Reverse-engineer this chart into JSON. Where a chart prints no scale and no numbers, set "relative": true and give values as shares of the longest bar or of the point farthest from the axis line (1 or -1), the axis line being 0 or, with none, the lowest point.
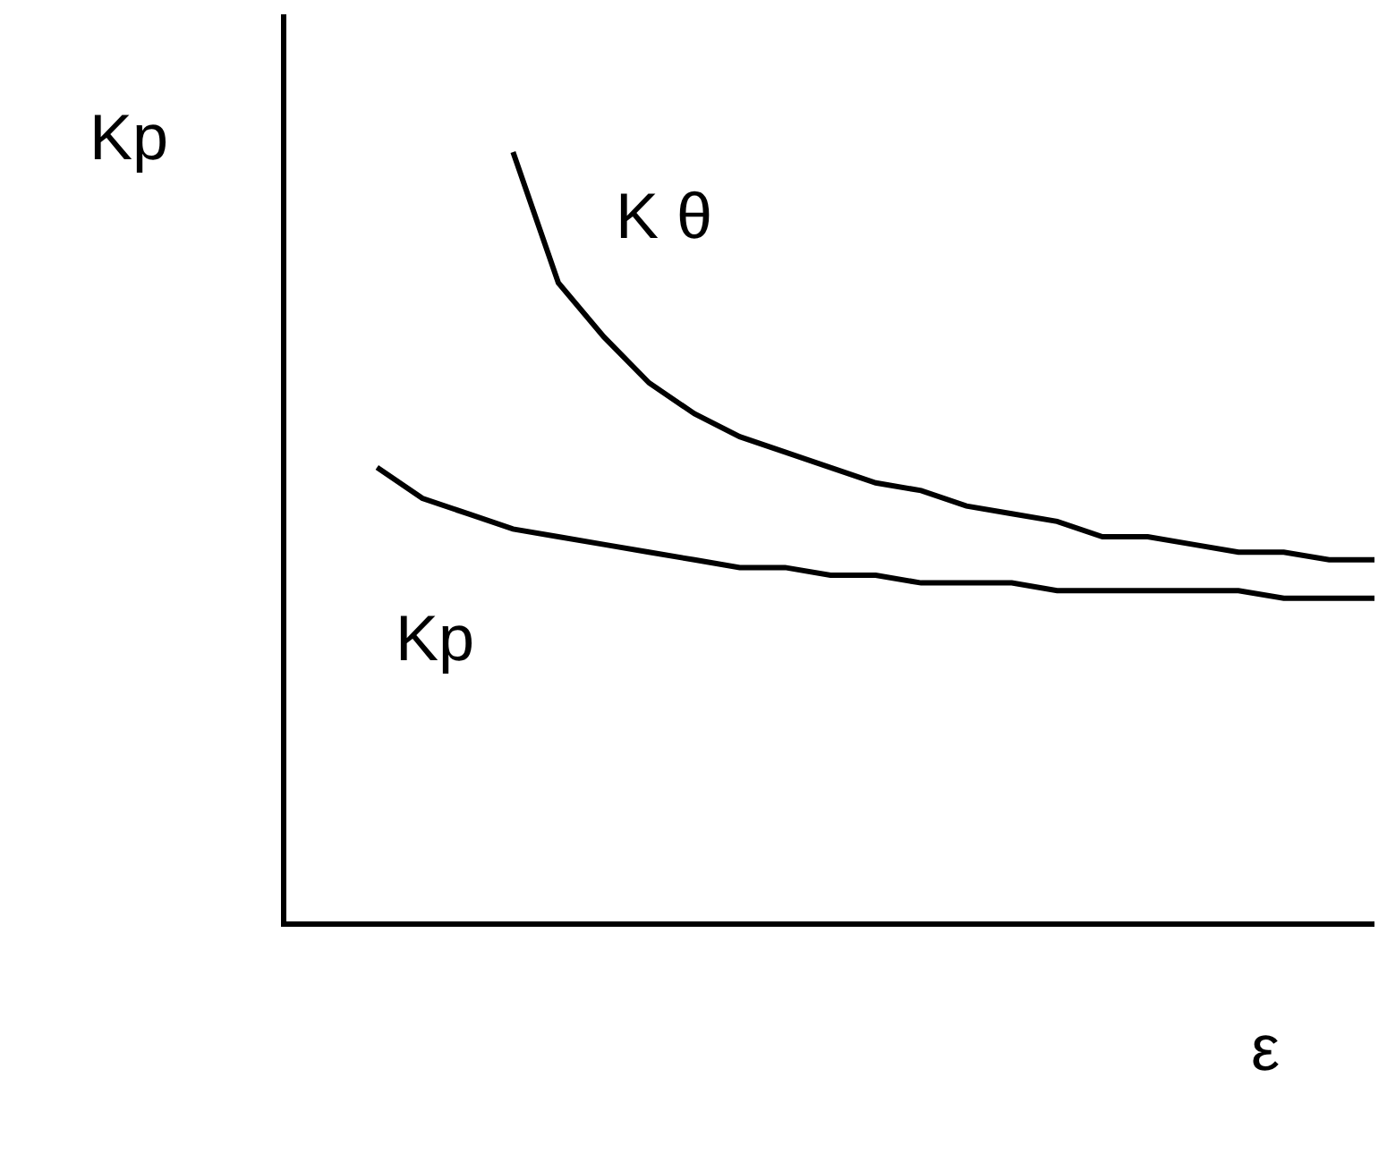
{
  "chart_data": {
    "type": "line",
    "relative": true,
    "xlabel": "ε",
    "ylabel": "Kp",
    "legend": false,
    "marker": "none",
    "line_style": "solid",
    "categories": [
      null,
      null,
      null,
      null,
      null,
      null,
      null,
      null,
      null,
      null,
      null,
      null,
      null,
      null,
      null,
      null,
      null,
      null,
      null,
      null,
      null,
      null,
      null,
      null,
      null
    ],
    "series": [
      {
        "name": "K θ",
        "color": "#000000",
        "values": [
          null,
          null,
          null,
          null,
          null,
          1.0,
          0.83,
          0.76,
          0.7,
          0.66,
          0.63,
          0.61,
          0.59,
          0.57,
          0.56,
          0.54,
          0.53,
          0.52,
          0.5,
          0.5,
          0.49,
          0.48,
          0.48,
          0.47,
          0.47
        ]
      },
      {
        "name": "Kp",
        "color": "#000000",
        "values": [
          null,
          null,
          0.59,
          0.55,
          0.53,
          0.51,
          0.5,
          0.49,
          0.48,
          0.47,
          0.46,
          0.46,
          0.45,
          0.45,
          0.44,
          0.44,
          0.44,
          0.43,
          0.43,
          0.43,
          0.43,
          0.43,
          0.42,
          0.42,
          0.42
        ]
      }
    ]
  }
}
